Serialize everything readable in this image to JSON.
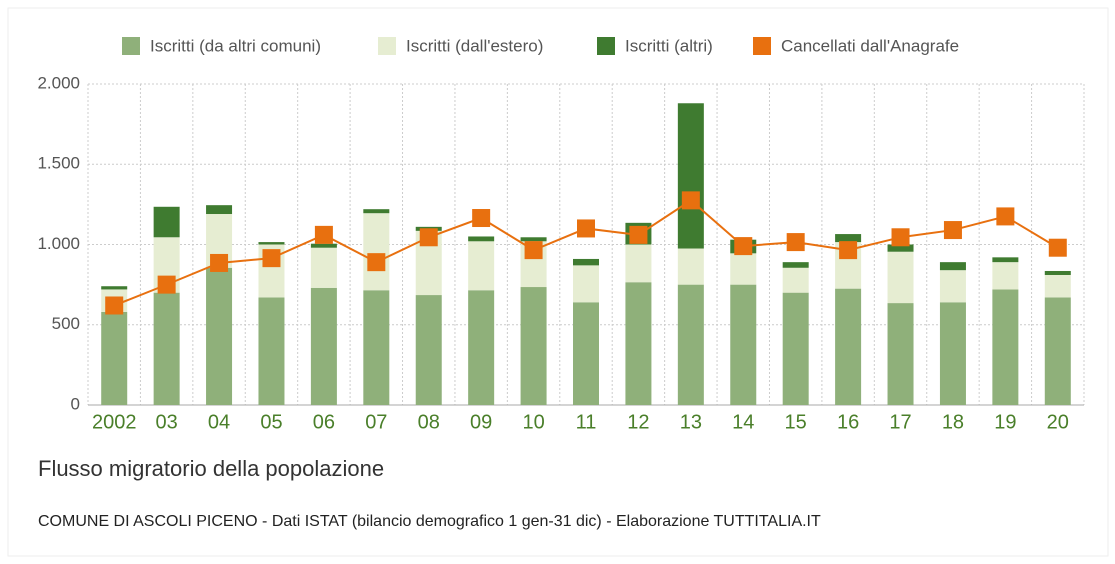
{
  "chart_data": {
    "type": "bar",
    "title": "Flusso migratorio della popolazione",
    "subtitle": "COMUNE DI ASCOLI PICENO - Dati ISTAT (bilancio demografico 1 gen-31 dic) - Elaborazione TUTTITALIA.IT",
    "categories": [
      "2002",
      "03",
      "04",
      "05",
      "06",
      "07",
      "08",
      "09",
      "10",
      "11",
      "12",
      "13",
      "14",
      "15",
      "16",
      "17",
      "18",
      "19",
      "20"
    ],
    "series": [
      {
        "name": "Iscritti (da altri comuni)",
        "color": "#8fb07a",
        "values": [
          580,
          700,
          855,
          670,
          730,
          715,
          685,
          715,
          735,
          640,
          765,
          750,
          750,
          700,
          725,
          635,
          640,
          720,
          670
        ]
      },
      {
        "name": "Iscritti (dall'estero)",
        "color": "#e6edd2",
        "values": [
          140,
          345,
          335,
          330,
          250,
          480,
          400,
          305,
          285,
          230,
          235,
          225,
          195,
          155,
          290,
          320,
          200,
          170,
          140
        ]
      },
      {
        "name": "Iscritti (altri)",
        "color": "#3f7b30",
        "values": [
          20,
          190,
          55,
          15,
          25,
          25,
          25,
          30,
          25,
          40,
          135,
          905,
          85,
          35,
          50,
          45,
          50,
          30,
          25
        ]
      },
      {
        "name": "Cancellati dall'Anagrafe",
        "color": "#e8700f",
        "type": "line",
        "values": [
          620,
          750,
          885,
          915,
          1060,
          890,
          1045,
          1165,
          965,
          1100,
          1060,
          1275,
          990,
          1015,
          965,
          1045,
          1090,
          1175,
          980
        ]
      }
    ],
    "ylim": [
      0,
      2000
    ],
    "yticks": [
      0,
      500,
      {
        "value": 1000,
        "label": "1.000"
      },
      {
        "value": 1500,
        "label": "1.500"
      },
      {
        "value": 2000,
        "label": "2.000"
      }
    ],
    "grid": true,
    "legend": "top"
  }
}
